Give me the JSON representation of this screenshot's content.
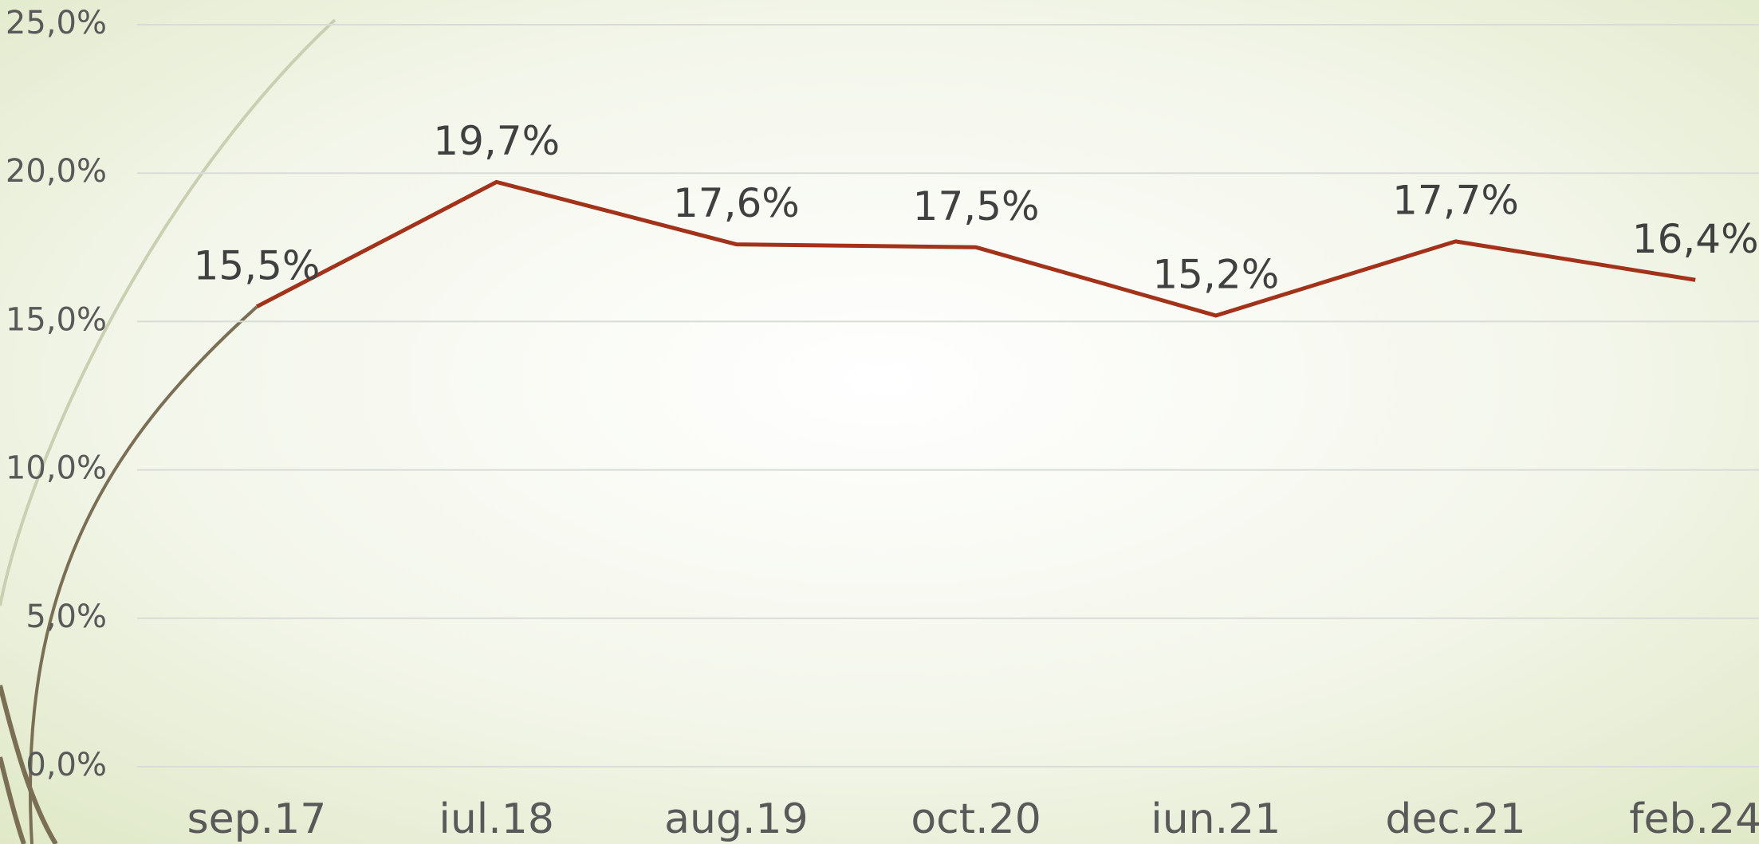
{
  "chart_data": {
    "type": "line",
    "categories": [
      "sep.17",
      "iul.18",
      "aug.19",
      "oct.20",
      "iun.21",
      "dec.21",
      "feb.24"
    ],
    "series": [
      {
        "color": "#a2331a",
        "values": [
          15.5,
          19.7,
          17.6,
          17.5,
          15.2,
          17.7,
          16.4
        ],
        "value_labels": [
          "15,5%",
          "19,7%",
          "17,6%",
          "17,5%",
          "15,2%",
          "17,7%",
          "16,4%"
        ]
      }
    ],
    "ylim": [
      0,
      25
    ],
    "yticks": [
      {
        "value": 0,
        "label": "0,0%"
      },
      {
        "value": 5,
        "label": "5,0%"
      },
      {
        "value": 10,
        "label": "10,0%"
      },
      {
        "value": 15,
        "label": "15,0%"
      },
      {
        "value": 20,
        "label": "20,0%"
      },
      {
        "value": 25,
        "label": "25,0%"
      }
    ],
    "grid": true
  }
}
